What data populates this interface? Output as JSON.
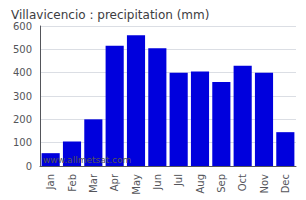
{
  "chart_data": {
    "type": "bar",
    "title": "Villavicencio : precipitation (mm)",
    "categories": [
      "Jan",
      "Feb",
      "Mar",
      "Apr",
      "May",
      "Jun",
      "Jul",
      "Aug",
      "Sep",
      "Oct",
      "Nov",
      "Dec"
    ],
    "values": [
      55,
      105,
      200,
      515,
      560,
      505,
      400,
      405,
      360,
      430,
      400,
      145
    ],
    "color": "#0000dd",
    "ylim": [
      0,
      600
    ],
    "yticks": [
      0,
      100,
      200,
      300,
      400,
      500,
      600
    ],
    "grid": true,
    "annotations": [
      "www.allmetsat.com"
    ]
  }
}
